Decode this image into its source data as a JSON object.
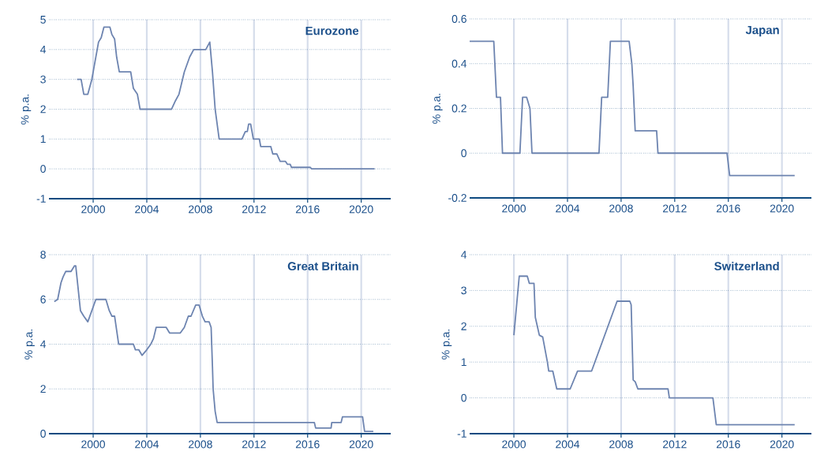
{
  "chart_data": [
    {
      "type": "line",
      "title": "Eurozone",
      "ylabel": "% p.a.",
      "color": "#6d84b0",
      "grid": true,
      "line_style": "solid",
      "xlim": [
        1996.7,
        2022.2
      ],
      "ylim": [
        -1,
        5
      ],
      "xticks": [
        2000,
        2004,
        2008,
        2012,
        2016,
        2020
      ],
      "yticks": [
        -1,
        0,
        1,
        2,
        3,
        4,
        5
      ],
      "x": [
        1998.8,
        1999.1,
        1999.3,
        1999.6,
        1999.9,
        2000.4,
        2000.6,
        2000.8,
        2001.25,
        2001.4,
        2001.6,
        2001.75,
        2001.95,
        2002.8,
        2003.0,
        2003.3,
        2003.5,
        2005.85,
        2006.1,
        2006.4,
        2006.8,
        2007.2,
        2007.5,
        2008.4,
        2008.7,
        2008.9,
        2009.1,
        2009.4,
        2011.1,
        2011.35,
        2011.5,
        2011.6,
        2011.75,
        2011.95,
        2012.4,
        2012.5,
        2013.25,
        2013.4,
        2013.7,
        2013.95,
        2014.35,
        2014.5,
        2014.7,
        2014.8,
        2016.2,
        2016.3,
        2021.0
      ],
      "values": [
        3.0,
        3.0,
        2.5,
        2.5,
        3.0,
        4.25,
        4.4,
        4.75,
        4.75,
        4.5,
        4.35,
        3.75,
        3.25,
        3.25,
        2.7,
        2.5,
        2.0,
        2.0,
        2.25,
        2.5,
        3.25,
        3.75,
        4.0,
        4.0,
        4.25,
        3.25,
        2.0,
        1.0,
        1.0,
        1.25,
        1.25,
        1.5,
        1.5,
        1.0,
        1.0,
        0.75,
        0.75,
        0.5,
        0.5,
        0.25,
        0.25,
        0.15,
        0.15,
        0.05,
        0.05,
        0.0,
        0.0
      ]
    },
    {
      "type": "line",
      "title": "Japan",
      "ylabel": "% p.a.",
      "color": "#6d84b0",
      "grid": true,
      "line_style": "solid",
      "xlim": [
        1996.7,
        2022.2
      ],
      "ylim": [
        -0.2,
        0.6
      ],
      "xticks": [
        2000,
        2004,
        2008,
        2012,
        2016,
        2020
      ],
      "yticks": [
        -0.2,
        0,
        0.2,
        0.4,
        0.6
      ],
      "x": [
        1996.7,
        1998.5,
        1998.7,
        1999.0,
        1999.15,
        2000.45,
        2000.65,
        2000.95,
        2001.2,
        2001.35,
        2006.35,
        2006.55,
        2007.0,
        2007.2,
        2008.6,
        2008.8,
        2008.9,
        2009.05,
        2010.65,
        2010.75,
        2015.9,
        2016.1,
        2020.95
      ],
      "values": [
        0.5,
        0.5,
        0.25,
        0.25,
        0.0,
        0.0,
        0.25,
        0.25,
        0.2,
        0.0,
        0.0,
        0.25,
        0.25,
        0.5,
        0.5,
        0.4,
        0.3,
        0.1,
        0.1,
        0.0,
        0.0,
        -0.1,
        -0.1
      ]
    },
    {
      "type": "line",
      "title": "Great Britain",
      "ylabel": "% p.a.",
      "color": "#6d84b0",
      "grid": true,
      "line_style": "solid",
      "xlim": [
        1996.7,
        2022.2
      ],
      "ylim": [
        0,
        8
      ],
      "xticks": [
        2000,
        2004,
        2008,
        2012,
        2016,
        2020
      ],
      "yticks": [
        0,
        2,
        4,
        6,
        8
      ],
      "x": [
        1997.1,
        1997.35,
        1997.6,
        1997.75,
        1997.95,
        1998.35,
        1998.6,
        1998.7,
        1999.05,
        1999.3,
        1999.6,
        2000.05,
        2000.2,
        2000.95,
        2001.2,
        2001.4,
        2001.6,
        2001.9,
        2003.0,
        2003.15,
        2003.4,
        2003.65,
        2004.0,
        2004.3,
        2004.5,
        2004.7,
        2005.45,
        2005.7,
        2006.5,
        2006.8,
        2007.1,
        2007.3,
        2007.65,
        2007.9,
        2008.15,
        2008.35,
        2008.65,
        2008.8,
        2008.9,
        2008.95,
        2009.1,
        2009.25,
        2016.5,
        2016.6,
        2017.75,
        2017.8,
        2018.5,
        2018.6,
        2020.1,
        2020.25,
        2020.9
      ],
      "values": [
        5.9,
        6.0,
        6.75,
        7.0,
        7.25,
        7.25,
        7.5,
        7.5,
        5.5,
        5.25,
        5.0,
        5.75,
        6.0,
        6.0,
        5.5,
        5.25,
        5.25,
        4.0,
        4.0,
        3.75,
        3.75,
        3.5,
        3.75,
        4.0,
        4.25,
        4.75,
        4.75,
        4.5,
        4.5,
        4.75,
        5.25,
        5.25,
        5.75,
        5.75,
        5.25,
        5.0,
        5.0,
        4.75,
        3.0,
        2.0,
        1.0,
        0.5,
        0.5,
        0.25,
        0.25,
        0.5,
        0.5,
        0.75,
        0.75,
        0.1,
        0.1
      ]
    },
    {
      "type": "line",
      "title": "Switzerland",
      "ylabel": "% p.a.",
      "color": "#6d84b0",
      "grid": true,
      "line_style": "solid",
      "xlim": [
        1996.7,
        2022.2
      ],
      "ylim": [
        -1,
        4
      ],
      "xticks": [
        2000,
        2004,
        2008,
        2012,
        2016,
        2020
      ],
      "yticks": [
        -1,
        0,
        1,
        2,
        3,
        4
      ],
      "x": [
        2000.0,
        2000.4,
        2001.0,
        2001.15,
        2001.5,
        2001.6,
        2001.9,
        2002.15,
        2002.5,
        2002.6,
        2002.9,
        2003.2,
        2004.2,
        2004.75,
        2005.8,
        2007.7,
        2008.65,
        2008.75,
        2008.9,
        2009.05,
        2009.25,
        2011.5,
        2011.6,
        2014.85,
        2015.1,
        2020.95
      ],
      "values": [
        1.75,
        3.4,
        3.4,
        3.2,
        3.2,
        2.25,
        1.75,
        1.7,
        1.0,
        0.75,
        0.75,
        0.25,
        0.25,
        0.75,
        0.75,
        2.7,
        2.7,
        2.6,
        0.5,
        0.45,
        0.25,
        0.25,
        0.0,
        0.0,
        -0.75,
        -0.75
      ]
    }
  ]
}
